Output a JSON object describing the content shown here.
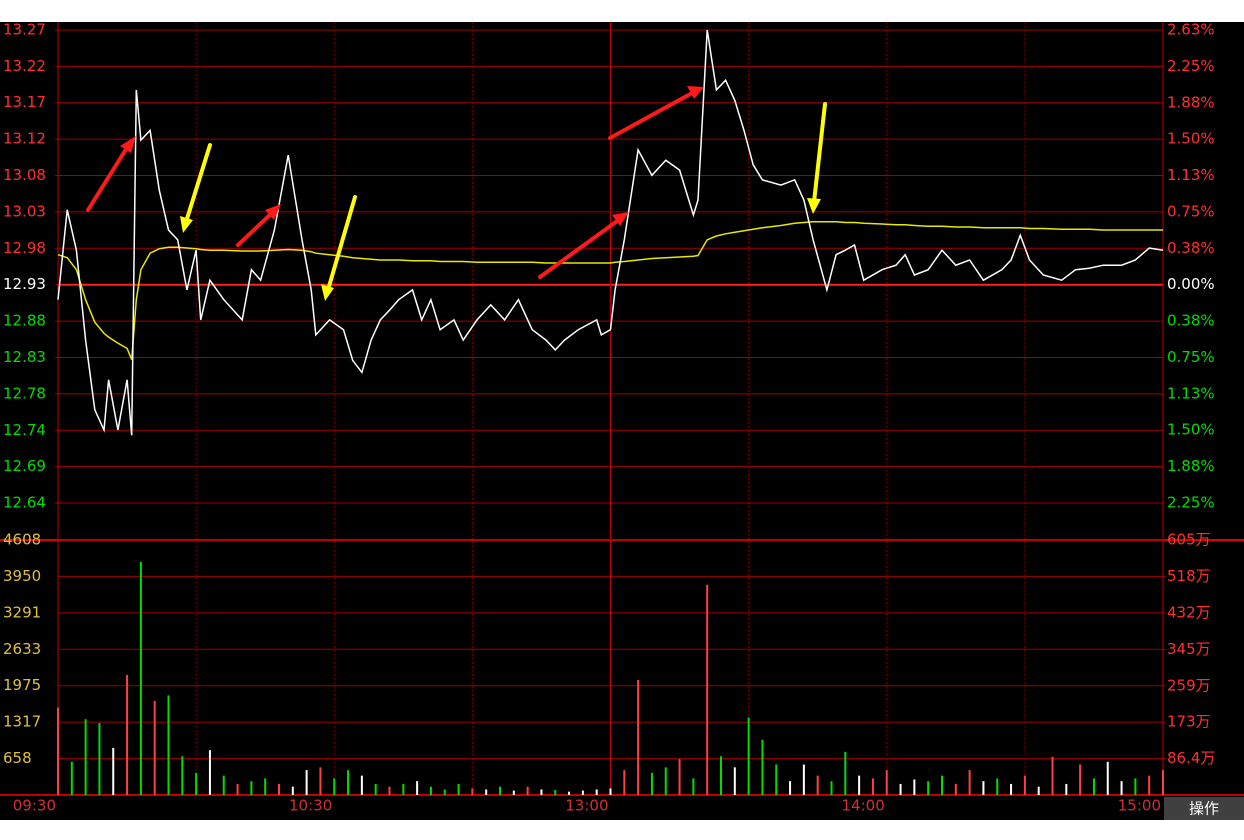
{
  "chart_data": [
    {
      "type": "line",
      "x": [
        0,
        2,
        4,
        6,
        8,
        10,
        11,
        13,
        15,
        16,
        17,
        18,
        20,
        22,
        24,
        26,
        28,
        30,
        31,
        33,
        36,
        40,
        42,
        44,
        47,
        50,
        53,
        55,
        56,
        59,
        62,
        64,
        66,
        68,
        70,
        72,
        74,
        77,
        79,
        81,
        83,
        86,
        88,
        91,
        94,
        97,
        100,
        103,
        106,
        108,
        110,
        113,
        117,
        118,
        120,
        121,
        123,
        126,
        129,
        132,
        135,
        138,
        139,
        141,
        143,
        145,
        147,
        149,
        151,
        153,
        157,
        160,
        162,
        164,
        167,
        169,
        171,
        173,
        175,
        179,
        182,
        184,
        186,
        189,
        192,
        195,
        198,
        201,
        205,
        207,
        209,
        211,
        214,
        218,
        221,
        224,
        227,
        231,
        234,
        237,
        240
      ],
      "series": [
        {
          "color": "#ffffff",
          "values": [
            12.91,
            13.03,
            12.976,
            12.856,
            12.763,
            12.736,
            12.803,
            12.736,
            12.803,
            12.729,
            13.19,
            13.123,
            13.136,
            13.056,
            13.003,
            12.99,
            12.923,
            12.976,
            12.883,
            12.936,
            12.91,
            12.883,
            12.95,
            12.936,
            13.003,
            13.103,
            12.99,
            12.923,
            12.863,
            12.883,
            12.87,
            12.829,
            12.813,
            12.856,
            12.883,
            12.896,
            12.91,
            12.923,
            12.883,
            12.91,
            12.87,
            12.883,
            12.856,
            12.883,
            12.903,
            12.883,
            12.91,
            12.87,
            12.856,
            12.843,
            12.856,
            12.87,
            12.883,
            12.863,
            12.87,
            12.923,
            12.99,
            13.11,
            13.076,
            13.096,
            13.083,
            13.023,
            13.043,
            13.27,
            13.19,
            13.203,
            13.176,
            13.136,
            13.09,
            13.07,
            13.063,
            13.07,
            13.043,
            12.99,
            12.923,
            12.97,
            12.976,
            12.983,
            12.936,
            12.95,
            12.956,
            12.97,
            12.943,
            12.95,
            12.976,
            12.956,
            12.963,
            12.936,
            12.95,
            12.963,
            12.996,
            12.963,
            12.943,
            12.936,
            12.95,
            12.952,
            12.956,
            12.956,
            12.963,
            12.979,
            12.976
          ]
        },
        {
          "color": "#e8e800",
          "values": [
            12.97,
            12.966,
            12.95,
            12.91,
            12.88,
            12.865,
            12.86,
            12.852,
            12.845,
            12.83,
            12.91,
            12.95,
            12.972,
            12.978,
            12.98,
            12.98,
            12.979,
            12.978,
            12.977,
            12.976,
            12.976,
            12.975,
            12.975,
            12.975,
            12.976,
            12.977,
            12.976,
            12.974,
            12.972,
            12.97,
            12.968,
            12.966,
            12.965,
            12.964,
            12.963,
            12.963,
            12.963,
            12.962,
            12.962,
            12.962,
            12.961,
            12.961,
            12.961,
            12.96,
            12.96,
            12.96,
            12.96,
            12.96,
            12.959,
            12.959,
            12.959,
            12.959,
            12.959,
            12.959,
            12.959,
            12.96,
            12.961,
            12.963,
            12.965,
            12.966,
            12.967,
            12.968,
            12.969,
            12.99,
            12.995,
            12.998,
            13.0,
            13.002,
            13.004,
            13.006,
            13.009,
            13.012,
            13.013,
            13.014,
            13.014,
            13.014,
            13.013,
            13.013,
            13.012,
            13.011,
            13.01,
            13.01,
            13.009,
            13.008,
            13.008,
            13.007,
            13.007,
            13.006,
            13.006,
            13.006,
            13.006,
            13.005,
            13.005,
            13.004,
            13.004,
            13.004,
            13.003,
            13.003,
            13.003,
            13.003,
            13.003
          ]
        }
      ],
      "xlim": [
        0,
        240
      ],
      "ylim": [
        12.6386,
        13.27
      ],
      "yticks": [
        13.27,
        {
          "value": 13.2214,
          "label": "13.22"
        },
        {
          "value": 13.1729,
          "label": "13.17"
        },
        {
          "value": 13.1243,
          "label": "13.12"
        },
        {
          "value": 13.0757,
          "label": "13.08"
        },
        {
          "value": 13.0271,
          "label": "13.03"
        },
        {
          "value": 12.9786,
          "label": "12.98"
        },
        12.93,
        {
          "value": 12.8814,
          "label": "12.88"
        },
        {
          "value": 12.8329,
          "label": "12.83"
        },
        {
          "value": 12.7843,
          "label": "12.78"
        },
        {
          "value": 12.7357,
          "label": "12.74"
        },
        {
          "value": 12.6871,
          "label": "12.69"
        },
        {
          "value": 12.6386,
          "label": "12.64"
        }
      ],
      "y2lim": [
        -2.25,
        2.625
      ],
      "y2ticks": [
        {
          "value": 2.625,
          "label": "2.63%"
        },
        {
          "value": 2.25,
          "label": "2.25%"
        },
        {
          "value": 1.875,
          "label": "1.88%"
        },
        {
          "value": 1.5,
          "label": "1.50%"
        },
        {
          "value": 1.125,
          "label": "1.13%"
        },
        {
          "value": 0.75,
          "label": "0.75%"
        },
        {
          "value": 0.375,
          "label": "0.38%"
        },
        {
          "value": 0,
          "label": "0.00%"
        },
        {
          "value": -0.375,
          "label": "0.38%"
        },
        {
          "value": -0.75,
          "label": "0.75%"
        },
        {
          "value": -1.125,
          "label": "1.13%"
        },
        {
          "value": -1.5,
          "label": "1.50%"
        },
        {
          "value": -1.875,
          "label": "1.88%"
        },
        {
          "value": -2.25,
          "label": "2.25%"
        }
      ],
      "up_color": "#ff3030",
      "down_color": "#00dd00",
      "flat_color": "#ffffff",
      "grid_color": "#a00000"
    },
    {
      "type": "bar",
      "x": [
        0,
        3,
        6,
        9,
        12,
        15,
        18,
        21,
        24,
        27,
        30,
        33,
        36,
        39,
        42,
        45,
        48,
        51,
        54,
        57,
        60,
        63,
        66,
        69,
        72,
        75,
        78,
        81,
        84,
        87,
        90,
        93,
        96,
        99,
        102,
        105,
        108,
        111,
        114,
        117,
        120,
        123,
        126,
        129,
        132,
        135,
        138,
        141,
        144,
        147,
        150,
        153,
        156,
        159,
        162,
        165,
        168,
        171,
        174,
        177,
        180,
        183,
        186,
        189,
        192,
        195,
        198,
        201,
        204,
        207,
        210,
        213,
        216,
        219,
        222,
        225,
        228,
        231,
        234,
        237,
        240
      ],
      "values": [
        1580,
        600,
        1370,
        1300,
        850,
        2170,
        4210,
        1700,
        1800,
        700,
        400,
        810,
        350,
        200,
        250,
        300,
        200,
        150,
        450,
        500,
        300,
        450,
        350,
        200,
        150,
        200,
        250,
        150,
        100,
        200,
        120,
        100,
        150,
        80,
        150,
        100,
        90,
        60,
        80,
        100,
        120,
        450,
        2080,
        400,
        500,
        650,
        300,
        3800,
        700,
        500,
        1400,
        1000,
        550,
        250,
        550,
        350,
        250,
        780,
        350,
        300,
        450,
        200,
        280,
        250,
        350,
        200,
        450,
        250,
        300,
        200,
        350,
        150,
        690,
        200,
        550,
        300,
        600,
        250,
        300,
        350,
        450
      ],
      "colors": [
        "#ff4040",
        "#00dd00",
        "#00dd00",
        "#00dd00",
        "#ffffff",
        "#ff4040",
        "#00dd00",
        "#ff4040",
        "#00dd00",
        "#00dd00",
        "#00dd00",
        "#ffffff",
        "#00dd00",
        "#ff4040",
        "#00dd00",
        "#00dd00",
        "#ff4040",
        "#ffffff",
        "#ffffff",
        "#ff4040",
        "#00dd00",
        "#00dd00",
        "#ffffff",
        "#00dd00",
        "#ff4040",
        "#00dd00",
        "#ffffff",
        "#00dd00",
        "#00dd00",
        "#00dd00",
        "#ff4040",
        "#ffffff",
        "#00dd00",
        "#ffffff",
        "#ff4040",
        "#ffffff",
        "#00dd00",
        "#ffffff",
        "#ffffff",
        "#ffffff",
        "#ffffff",
        "#ff4040",
        "#ff4040",
        "#00dd00",
        "#00dd00",
        "#ff4040",
        "#00dd00",
        "#ff4040",
        "#00dd00",
        "#ffffff",
        "#00dd00",
        "#00dd00",
        "#00dd00",
        "#ffffff",
        "#ffffff",
        "#ff4040",
        "#00dd00",
        "#00dd00",
        "#ffffff",
        "#ff4040",
        "#ff4040",
        "#ffffff",
        "#ffffff",
        "#00dd00",
        "#00dd00",
        "#ff4040",
        "#ff4040",
        "#ffffff",
        "#00dd00",
        "#ffffff",
        "#ff4040",
        "#ffffff",
        "#ff4040",
        "#ffffff",
        "#ff4040",
        "#00dd00",
        "#ffffff",
        "#ffffff",
        "#00dd00",
        "#ff4040",
        "#ff4040"
      ],
      "xlim": [
        0,
        240
      ],
      "xticks": [
        {
          "value": 0,
          "label": "09:30"
        },
        {
          "value": 60,
          "label": "10:30"
        },
        {
          "value": 120,
          "label": "13:00"
        },
        {
          "value": 180,
          "label": "14:00"
        },
        {
          "value": 240,
          "label": "15:00"
        }
      ],
      "xminor": [
        30,
        90,
        150,
        210
      ],
      "ylim": [
        0,
        4608
      ],
      "yticks": [
        658,
        1317,
        1975,
        2633,
        3291,
        3950,
        4608
      ],
      "y2lim": [
        0,
        605
      ],
      "y2ticks": [
        {
          "value": 86.4,
          "label": "86.4万"
        },
        {
          "value": 173,
          "label": "173万"
        },
        {
          "value": 259,
          "label": "259万"
        },
        {
          "value": 345,
          "label": "345万"
        },
        {
          "value": 432,
          "label": "432万"
        },
        {
          "value": 518,
          "label": "518万"
        },
        {
          "value": 605,
          "label": "605万"
        }
      ],
      "ytick_color": "#e0c040",
      "y2tick_color": "#ff3030",
      "xtick_color": "#d03030",
      "grid_color": "#a00000"
    }
  ],
  "toolbar": {
    "button": "操作"
  }
}
